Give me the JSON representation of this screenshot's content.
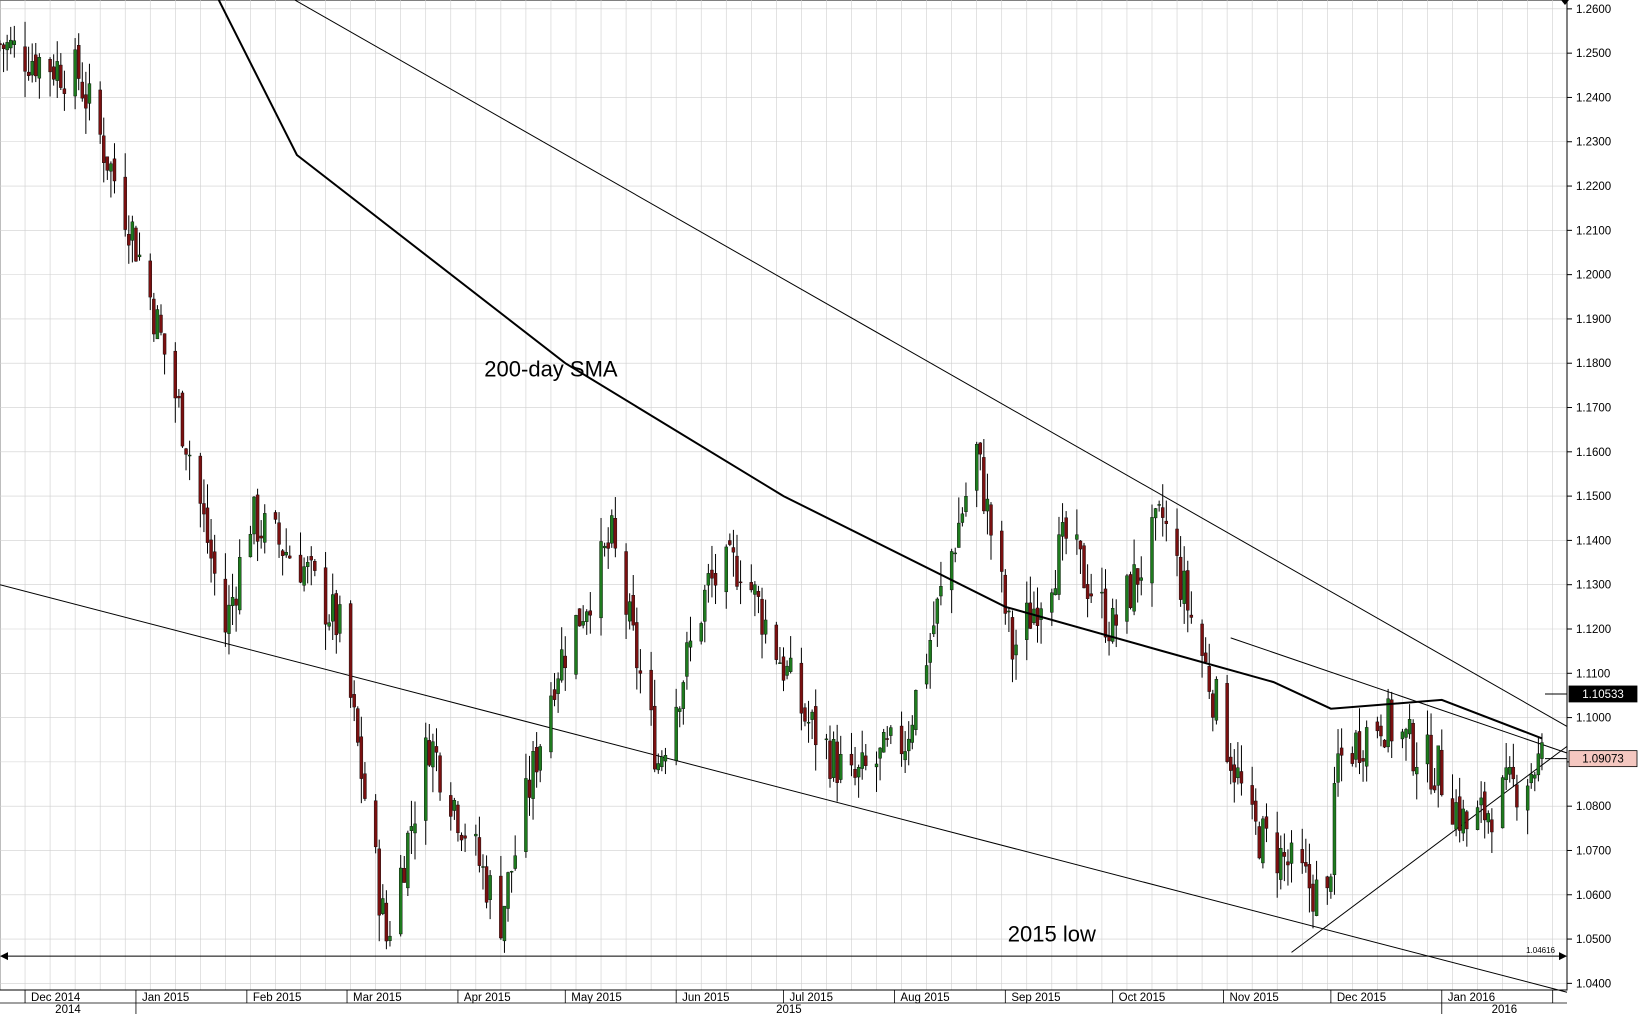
{
  "chart_data": {
    "type": "candlestick",
    "title": "",
    "xlabel": "",
    "ylabel": "",
    "ylim": [
      1.0385,
      1.262
    ],
    "y_ticks": [
      "1.2600",
      "1.2500",
      "1.2400",
      "1.2300",
      "1.2200",
      "1.2100",
      "1.2000",
      "1.1900",
      "1.1800",
      "1.1700",
      "1.1600",
      "1.1500",
      "1.1400",
      "1.1300",
      "1.1200",
      "1.1100",
      "1.1000",
      "1.0900",
      "1.0800",
      "1.0700",
      "1.0600",
      "1.0500",
      "1.0400"
    ],
    "month_labels": [
      "Dec 2014",
      "Jan 2015",
      "Feb 2015",
      "Mar 2015",
      "Apr 2015",
      "May 2015",
      "Jun 2015",
      "Jul 2015",
      "Aug 2015",
      "Sep 2015",
      "Oct 2015",
      "Nov 2015",
      "Dec 2015",
      "Jan 2016"
    ],
    "year_labels": [
      "2014",
      "2015",
      "2016"
    ],
    "grid": true,
    "colors": {
      "up": "#1e7a1e",
      "down": "#7a1010",
      "wick": "#000000",
      "grid": "#cfcfcf",
      "price_tag": "#f4c7c0"
    },
    "price_path": [
      [
        "2014-11-24",
        1.252
      ],
      [
        "2014-12-16",
        1.245
      ],
      [
        "2014-12-31",
        1.21
      ],
      [
        "2015-01-05",
        1.195
      ],
      [
        "2015-01-16",
        1.16
      ],
      [
        "2015-01-26",
        1.12
      ],
      [
        "2015-02-02",
        1.145
      ],
      [
        "2015-02-16",
        1.135
      ],
      [
        "2015-02-27",
        1.12
      ],
      [
        "2015-03-12",
        1.05
      ],
      [
        "2015-03-24",
        1.095
      ],
      [
        "2015-04-13",
        1.055
      ],
      [
        "2015-04-28",
        1.11
      ],
      [
        "2015-05-14",
        1.14
      ],
      [
        "2015-05-27",
        1.09
      ],
      [
        "2015-06-10",
        1.13
      ],
      [
        "2015-06-19",
        1.135
      ],
      [
        "2015-07-07",
        1.1
      ],
      [
        "2015-07-20",
        1.085
      ],
      [
        "2015-08-04",
        1.095
      ],
      [
        "2015-08-24",
        1.16
      ],
      [
        "2015-09-03",
        1.115
      ],
      [
        "2015-09-18",
        1.14
      ],
      [
        "2015-10-01",
        1.12
      ],
      [
        "2015-10-15",
        1.145
      ],
      [
        "2015-11-09",
        1.075
      ],
      [
        "2015-11-30",
        1.058
      ],
      [
        "2015-12-03",
        1.09
      ],
      [
        "2015-12-15",
        1.1
      ],
      [
        "2015-12-31",
        1.088
      ],
      [
        "2016-01-08",
        1.075
      ],
      [
        "2016-01-22",
        1.085
      ],
      [
        "2016-01-29",
        1.0907
      ]
    ],
    "sma_200": [
      [
        "2014-11-24",
        1.36
      ],
      [
        "2015-02-15",
        1.227
      ],
      [
        "2015-05-01",
        1.18
      ],
      [
        "2015-07-01",
        1.15
      ],
      [
        "2015-09-01",
        1.125
      ],
      [
        "2015-10-15",
        1.115
      ],
      [
        "2015-11-15",
        1.108
      ],
      [
        "2015-12-01",
        1.102
      ],
      [
        "2016-01-01",
        1.104
      ],
      [
        "2016-01-29",
        1.0953
      ]
    ],
    "trendlines": [
      {
        "from": [
          "2014-11-24",
          1.13
        ],
        "to": [
          "2016-02-05",
          1.038
        ]
      },
      {
        "from": [
          "2014-11-24",
          1.3
        ],
        "to": [
          "2016-02-05",
          1.098
        ]
      },
      {
        "from": [
          "2015-11-03",
          1.118
        ],
        "to": [
          "2016-02-05",
          1.092
        ]
      },
      {
        "from": [
          "2015-11-20",
          1.047
        ],
        "to": [
          "2016-02-05",
          1.0935
        ]
      }
    ],
    "horizontal_line": {
      "value": 1.04616,
      "label": "1.04616"
    },
    "price_tags": [
      {
        "value": 1.10533,
        "label": "1.10533",
        "style": "dark"
      },
      {
        "value": 1.09073,
        "label": "1.09073",
        "style": "light"
      }
    ],
    "annotations": [
      {
        "text": "200-day SMA",
        "date": "2015-04-27",
        "value": 1.177
      },
      {
        "text": "2015 low",
        "date": "2015-09-14",
        "value": 1.0495
      }
    ]
  }
}
